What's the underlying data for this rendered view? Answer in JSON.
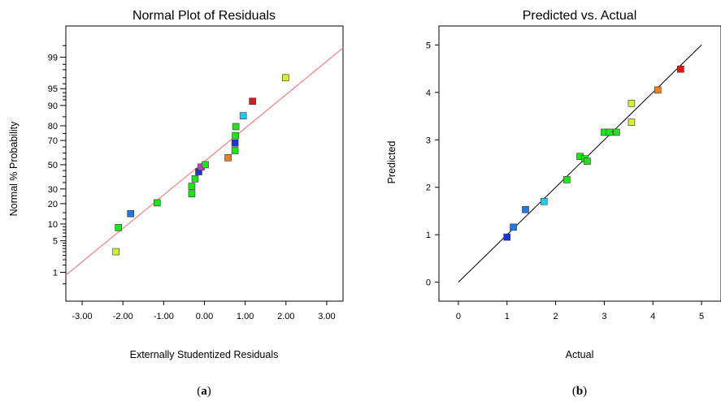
{
  "chart_data": [
    {
      "type": "scatter",
      "title": "Normal Plot of Residuals",
      "xlabel": "Externally Studentized Residuals",
      "ylabel": "Normal % Probability",
      "caption_letter": "a",
      "xlim": [
        -3.4,
        3.4
      ],
      "x_ticks": [
        -3.0,
        -2.0,
        -1.0,
        0.0,
        1.0,
        2.0,
        3.0
      ],
      "x_tick_labels": [
        "-3.00",
        "-2.00",
        "-1.00",
        "0.00",
        "1.00",
        "2.00",
        "3.00"
      ],
      "y_scale": "normal-probability",
      "y_labeled_ticks": [
        1,
        5,
        10,
        20,
        30,
        50,
        70,
        80,
        90,
        95,
        99
      ],
      "y_tick_labels": [
        "1",
        "5",
        "10",
        "20",
        "30",
        "50",
        "70",
        "80",
        "90",
        "95",
        "99"
      ],
      "reference_line": {
        "color": "#f08080"
      },
      "points": [
        {
          "x": -2.17,
          "y": 3.0,
          "color": "#d4ee33"
        },
        {
          "x": -2.11,
          "y": 8.7,
          "color": "#22e022"
        },
        {
          "x": -1.81,
          "y": 14.5,
          "color": "#1f77e0"
        },
        {
          "x": -1.16,
          "y": 20.5,
          "color": "#22e022"
        },
        {
          "x": -0.31,
          "y": 26.5,
          "color": "#22e022"
        },
        {
          "x": -0.31,
          "y": 32.0,
          "color": "#22e022"
        },
        {
          "x": -0.23,
          "y": 38.0,
          "color": "#22e022"
        },
        {
          "x": -0.14,
          "y": 44.0,
          "color": "#1838d8"
        },
        {
          "x": -0.08,
          "y": 48.0,
          "color": "#c040c0"
        },
        {
          "x": 0.02,
          "y": 50.0,
          "color": "#22e022"
        },
        {
          "x": 0.58,
          "y": 56.0,
          "color": "#f07f1f"
        },
        {
          "x": 0.75,
          "y": 62.0,
          "color": "#22e022"
        },
        {
          "x": 0.75,
          "y": 68.0,
          "color": "#1838d8"
        },
        {
          "x": 0.76,
          "y": 73.5,
          "color": "#22e022"
        },
        {
          "x": 0.77,
          "y": 79.5,
          "color": "#22e022"
        },
        {
          "x": 0.95,
          "y": 85.5,
          "color": "#22ccee"
        },
        {
          "x": 1.18,
          "y": 91.5,
          "color": "#e01818"
        },
        {
          "x": 1.99,
          "y": 97.0,
          "color": "#d4ee33"
        }
      ]
    },
    {
      "type": "scatter",
      "title": "Predicted vs. Actual",
      "xlabel": "Actual",
      "ylabel": "Predicted",
      "caption_letter": "b",
      "xlim": [
        -0.4,
        5.4
      ],
      "ylim": [
        -0.4,
        5.4
      ],
      "x_ticks": [
        0,
        1,
        2,
        3,
        4,
        5
      ],
      "y_ticks": [
        0,
        1,
        2,
        3,
        4,
        5
      ],
      "reference_line": {
        "from": [
          0,
          0
        ],
        "to": [
          5,
          5
        ],
        "color": "#000000"
      },
      "points": [
        {
          "x": 1.0,
          "y": 0.95,
          "color": "#1838d8"
        },
        {
          "x": 1.13,
          "y": 1.16,
          "color": "#1f77e0"
        },
        {
          "x": 1.38,
          "y": 1.53,
          "color": "#1f77e0"
        },
        {
          "x": 1.76,
          "y": 1.7,
          "color": "#22ccee"
        },
        {
          "x": 2.23,
          "y": 2.16,
          "color": "#22e022"
        },
        {
          "x": 2.5,
          "y": 2.65,
          "color": "#22e022"
        },
        {
          "x": 2.6,
          "y": 2.6,
          "color": "#22e022"
        },
        {
          "x": 2.65,
          "y": 2.55,
          "color": "#22e022"
        },
        {
          "x": 3.0,
          "y": 3.16,
          "color": "#22e022"
        },
        {
          "x": 3.1,
          "y": 3.16,
          "color": "#22e022"
        },
        {
          "x": 3.25,
          "y": 3.16,
          "color": "#22e022"
        },
        {
          "x": 3.56,
          "y": 3.37,
          "color": "#d4ee33"
        },
        {
          "x": 3.56,
          "y": 3.77,
          "color": "#d4ee33"
        },
        {
          "x": 4.1,
          "y": 4.05,
          "color": "#f07f1f"
        },
        {
          "x": 4.57,
          "y": 4.49,
          "color": "#e01818"
        }
      ]
    }
  ]
}
